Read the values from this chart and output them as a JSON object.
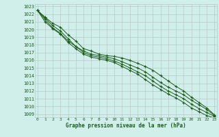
{
  "xlabel": "Graphe pression niveau de la mer (hPa)",
  "background_color": "#d0eeea",
  "plot_bg_color": "#d0eeea",
  "grid_color": "#b8c8c4",
  "line_color": "#1a5c1a",
  "ylim": [
    1009,
    1023
  ],
  "xlim": [
    0,
    23
  ],
  "yticks": [
    1009,
    1010,
    1011,
    1012,
    1013,
    1014,
    1015,
    1016,
    1017,
    1018,
    1019,
    1020,
    1021,
    1022,
    1023
  ],
  "xticks": [
    0,
    1,
    2,
    3,
    4,
    5,
    6,
    7,
    8,
    9,
    10,
    11,
    12,
    13,
    14,
    15,
    16,
    17,
    18,
    19,
    20,
    21,
    22,
    23
  ],
  "series": [
    [
      1022.5,
      1021.6,
      1020.8,
      1020.3,
      1019.3,
      1018.5,
      1017.5,
      1017.2,
      1016.8,
      1016.6,
      1016.5,
      1016.3,
      1016.0,
      1015.6,
      1015.2,
      1014.7,
      1014.0,
      1013.3,
      1012.6,
      1012.0,
      1011.2,
      1010.5,
      1009.8,
      1008.9
    ],
    [
      1022.5,
      1021.5,
      1020.5,
      1019.8,
      1018.8,
      1017.8,
      1017.2,
      1016.8,
      1016.6,
      1016.4,
      1016.2,
      1015.8,
      1015.4,
      1015.0,
      1014.5,
      1013.8,
      1013.1,
      1012.5,
      1012.0,
      1011.5,
      1010.8,
      1010.2,
      1009.6,
      1008.8
    ],
    [
      1022.5,
      1021.3,
      1020.2,
      1019.5,
      1018.5,
      1017.8,
      1017.0,
      1016.6,
      1016.4,
      1016.2,
      1015.9,
      1015.5,
      1015.0,
      1014.5,
      1014.0,
      1013.3,
      1012.6,
      1012.0,
      1011.5,
      1011.0,
      1010.3,
      1009.7,
      1009.2,
      1008.7
    ],
    [
      1022.5,
      1021.0,
      1020.1,
      1019.4,
      1018.3,
      1017.5,
      1016.8,
      1016.4,
      1016.2,
      1016.0,
      1015.7,
      1015.2,
      1014.7,
      1014.2,
      1013.5,
      1012.8,
      1012.2,
      1011.6,
      1011.1,
      1010.5,
      1009.8,
      1009.3,
      1008.8,
      1008.5
    ]
  ]
}
